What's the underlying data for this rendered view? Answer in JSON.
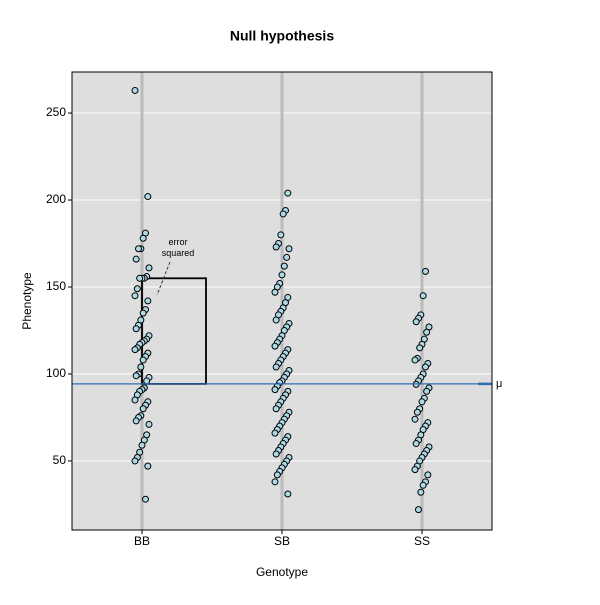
{
  "chart_data": {
    "type": "strip",
    "title": "Null hypothesis",
    "x_label": "Genotype",
    "y_label": "Phenotype",
    "categories": [
      "BB",
      "SB",
      "SS"
    ],
    "values": [
      [
        263,
        202,
        181,
        178,
        172,
        172,
        166,
        161,
        156,
        155,
        155,
        155,
        149,
        145,
        142,
        137,
        135,
        131,
        128,
        126,
        122,
        120,
        119,
        118,
        117,
        115,
        114,
        112,
        110,
        108,
        104,
        100,
        99,
        98,
        96,
        92,
        91,
        90,
        88,
        85,
        84,
        82,
        80,
        76,
        75,
        73,
        71,
        65,
        62,
        59,
        55,
        52,
        50,
        47,
        28
      ],
      [
        204,
        194,
        192,
        180,
        175,
        173,
        172,
        167,
        162,
        157,
        152,
        150,
        147,
        144,
        141,
        138,
        136,
        134,
        131,
        129,
        127,
        125,
        122,
        120,
        118,
        116,
        114,
        112,
        110,
        108,
        106,
        104,
        102,
        100,
        98,
        96,
        95,
        93,
        91,
        90,
        88,
        86,
        84,
        82,
        80,
        78,
        76,
        74,
        72,
        70,
        68,
        66,
        64,
        62,
        60,
        58,
        56,
        54,
        52,
        50,
        48,
        46,
        44,
        42,
        38,
        31
      ],
      [
        159,
        145,
        134,
        132,
        130,
        127,
        124,
        120,
        117,
        115,
        109,
        108,
        106,
        104,
        100,
        98,
        96,
        94,
        92,
        90,
        86,
        84,
        80,
        78,
        74,
        72,
        70,
        68,
        65,
        62,
        60,
        58,
        56,
        54,
        52,
        50,
        47,
        45,
        42,
        38,
        36,
        32,
        22
      ]
    ],
    "point_color": "#add8e6",
    "mean": 94.3,
    "mean_label": "μ",
    "mean_color": "#2e6db4",
    "error_box": {
      "category": 0,
      "value": 155
    },
    "annotation": "error squared",
    "ylim": [
      10.3,
      273.6
    ],
    "yticks": [
      50,
      100,
      150,
      200,
      250
    ],
    "grid": true
  }
}
